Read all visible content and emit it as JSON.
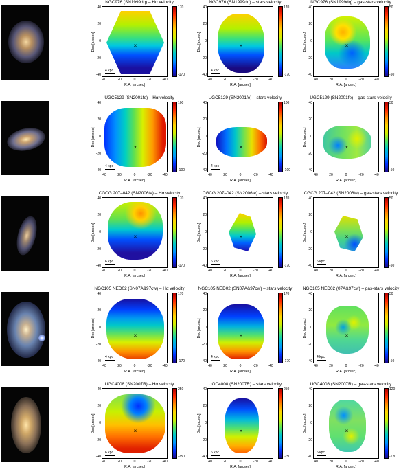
{
  "axes": {
    "xlabel": "R.A. [arcsec]",
    "ylabel": "Dec [arcsec]",
    "xticks": [
      "40",
      "20",
      "0",
      "-20",
      "-40"
    ],
    "yticks": [
      "40",
      "20",
      "0",
      "-20",
      "-40"
    ]
  },
  "rows": [
    {
      "galaxy": "NGC976",
      "scale": "4 kpc",
      "panels": [
        {
          "title": "NGC976 (SN1999dq) – Hα velocity",
          "cbar_max": "170",
          "cbar_min": "-170"
        },
        {
          "title": "NGC976 (SN1999dq) – stars velocity",
          "cbar_max": "170",
          "cbar_min": "-170"
        },
        {
          "title": "NGC976 (SN1999dq) – gas-stars velocity",
          "cbar_max": "50",
          "cbar_min": "-50"
        }
      ]
    },
    {
      "galaxy": "UGC5129",
      "scale": "4 kpc",
      "panels": [
        {
          "title": "UGC5129 (SN2001fe) – Hα velocity",
          "cbar_max": "100",
          "cbar_min": "-100"
        },
        {
          "title": "UGC5129 (SN2001fe) – stars velocity",
          "cbar_max": "100",
          "cbar_min": "-100"
        },
        {
          "title": "UGC5129 (SN2001fe) – gas-stars velocity",
          "cbar_max": "50",
          "cbar_min": "-50"
        }
      ]
    },
    {
      "galaxy": "CGCG 207-042",
      "scale": "6 kpc",
      "panels": [
        {
          "title": "CGCG 207–042 (SN2006te) – Hα velocity",
          "cbar_max": "170",
          "cbar_min": "-170"
        },
        {
          "title": "CGCG 207–042 (SN2006te) – stars velocity",
          "cbar_max": "170",
          "cbar_min": "-170"
        },
        {
          "title": "CGCG 207–042 (SN2006te) – gas-stars velocity",
          "cbar_max": "50",
          "cbar_min": "-50"
        }
      ]
    },
    {
      "galaxy": "NGC105 NED02",
      "scale": "4 kpc",
      "panels": [
        {
          "title": "NGC105 NED02 (SN07A&97cw) – Hα velocity",
          "cbar_max": "170",
          "cbar_min": "-170"
        },
        {
          "title": "NGC105 NED02 (SN07A&97cw) – stars velocity",
          "cbar_max": "170",
          "cbar_min": "-170"
        },
        {
          "title": "NGC105 NED02 (07A&97cw) – gas-stars velocity",
          "cbar_max": "50",
          "cbar_min": "-50"
        }
      ]
    },
    {
      "galaxy": "UGC4008",
      "scale": "6 kpc",
      "panels": [
        {
          "title": "UGC4008 (SN2007R) – Hα velocity",
          "cbar_max": "250",
          "cbar_min": "-250"
        },
        {
          "title": "UGC4008 (SN2007R) – stars velocity",
          "cbar_max": "250",
          "cbar_min": "-250"
        },
        {
          "title": "UGC4008 (SN2007R) – gas-stars velocity",
          "cbar_max": "120",
          "cbar_min": "-120"
        }
      ]
    }
  ]
}
